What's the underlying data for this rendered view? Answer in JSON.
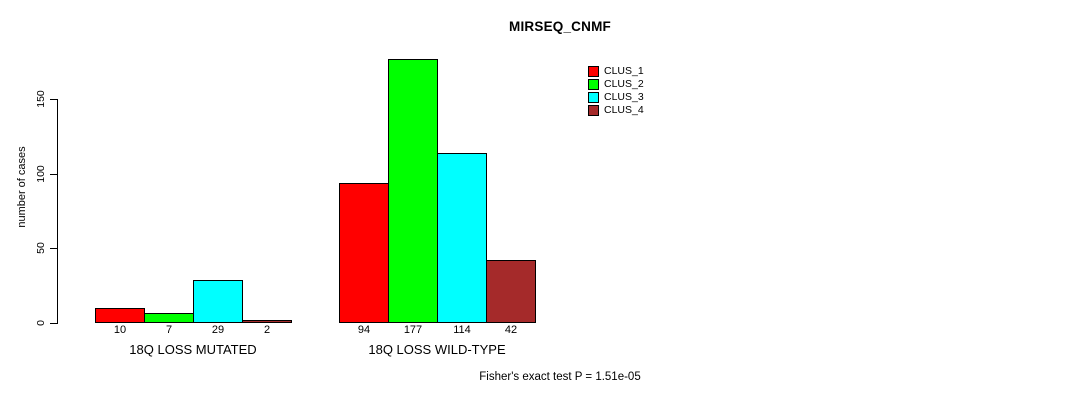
{
  "chart_data": {
    "type": "bar",
    "title": "MIRSEQ_CNMF",
    "ylabel": "number of cases",
    "xlabel": "",
    "yticks": [
      0,
      50,
      100,
      150
    ],
    "ylim": [
      0,
      185
    ],
    "grid": false,
    "legend_position": "top-right",
    "categories": [
      "18Q LOSS MUTATED",
      "18Q LOSS WILD-TYPE"
    ],
    "series": [
      {
        "name": "CLUS_1",
        "color": "#FF0000",
        "values": [
          10,
          94
        ]
      },
      {
        "name": "CLUS_2",
        "color": "#00FF00",
        "values": [
          7,
          177
        ]
      },
      {
        "name": "CLUS_3",
        "color": "#00FFFF",
        "values": [
          29,
          114
        ]
      },
      {
        "name": "CLUS_4",
        "color": "#A52A2A",
        "values": [
          2,
          42
        ]
      }
    ],
    "bar_value_labels": [
      [
        "10",
        "7",
        "29",
        "2"
      ],
      [
        "94",
        "177",
        "114",
        "42"
      ]
    ],
    "caption": "Fisher's exact test P = 1.51e-05",
    "colors": {
      "background": "#FFFFFF",
      "axis": "#000000",
      "bar_border": "#000000",
      "text": "#000000"
    }
  }
}
